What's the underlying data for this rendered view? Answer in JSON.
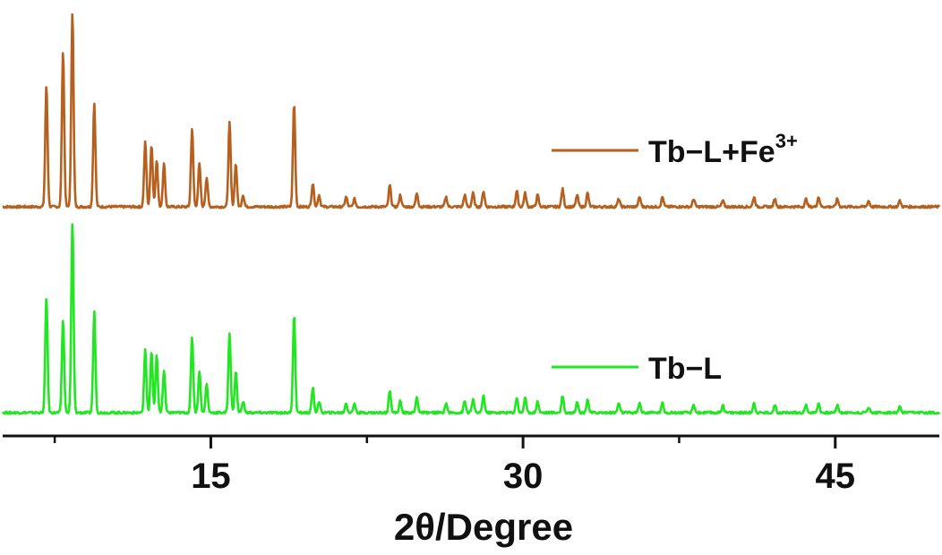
{
  "chart_data": {
    "type": "line",
    "xlabel": "2θ/Degree",
    "ylabel": "",
    "title": "",
    "xlim": [
      5,
      50
    ],
    "xticks": [
      15,
      30,
      45
    ],
    "minor_xticks": [
      7.5,
      22.5,
      37.5
    ],
    "grid": false,
    "legend_placement": "right, beside each trace",
    "series": [
      {
        "name_main": "Tb−L+Fe",
        "name_sup": "3+",
        "color": "#b5601e",
        "peaks": [
          {
            "x": 7.1,
            "y": 0.62
          },
          {
            "x": 7.9,
            "y": 0.8
          },
          {
            "x": 8.35,
            "y": 1.0
          },
          {
            "x": 9.4,
            "y": 0.53
          },
          {
            "x": 11.85,
            "y": 0.33
          },
          {
            "x": 12.15,
            "y": 0.32
          },
          {
            "x": 12.4,
            "y": 0.24
          },
          {
            "x": 12.75,
            "y": 0.22
          },
          {
            "x": 14.1,
            "y": 0.4
          },
          {
            "x": 14.45,
            "y": 0.22
          },
          {
            "x": 14.8,
            "y": 0.15
          },
          {
            "x": 15.9,
            "y": 0.43
          },
          {
            "x": 16.2,
            "y": 0.22
          },
          {
            "x": 16.55,
            "y": 0.06
          },
          {
            "x": 19.0,
            "y": 0.53
          },
          {
            "x": 19.9,
            "y": 0.12
          },
          {
            "x": 20.2,
            "y": 0.06
          },
          {
            "x": 21.5,
            "y": 0.05
          },
          {
            "x": 21.9,
            "y": 0.04
          },
          {
            "x": 23.6,
            "y": 0.11
          },
          {
            "x": 24.1,
            "y": 0.06
          },
          {
            "x": 24.9,
            "y": 0.07
          },
          {
            "x": 26.3,
            "y": 0.05
          },
          {
            "x": 27.2,
            "y": 0.06
          },
          {
            "x": 27.6,
            "y": 0.07
          },
          {
            "x": 28.1,
            "y": 0.08
          },
          {
            "x": 29.7,
            "y": 0.08
          },
          {
            "x": 30.1,
            "y": 0.07
          },
          {
            "x": 30.7,
            "y": 0.06
          },
          {
            "x": 31.9,
            "y": 0.09
          },
          {
            "x": 32.6,
            "y": 0.06
          },
          {
            "x": 33.1,
            "y": 0.07
          },
          {
            "x": 34.6,
            "y": 0.04
          },
          {
            "x": 35.6,
            "y": 0.05
          },
          {
            "x": 36.7,
            "y": 0.05
          },
          {
            "x": 38.2,
            "y": 0.04
          },
          {
            "x": 39.6,
            "y": 0.03
          },
          {
            "x": 41.1,
            "y": 0.05
          },
          {
            "x": 42.1,
            "y": 0.04
          },
          {
            "x": 43.6,
            "y": 0.04
          },
          {
            "x": 44.2,
            "y": 0.05
          },
          {
            "x": 45.1,
            "y": 0.04
          },
          {
            "x": 46.6,
            "y": 0.03
          },
          {
            "x": 48.1,
            "y": 0.03
          }
        ]
      },
      {
        "name_main": "Tb−L",
        "name_sup": "",
        "color": "#22e622",
        "peaks": [
          {
            "x": 7.1,
            "y": 0.61
          },
          {
            "x": 7.9,
            "y": 0.49
          },
          {
            "x": 8.35,
            "y": 1.0
          },
          {
            "x": 9.4,
            "y": 0.53
          },
          {
            "x": 11.85,
            "y": 0.33
          },
          {
            "x": 12.15,
            "y": 0.32
          },
          {
            "x": 12.4,
            "y": 0.3
          },
          {
            "x": 12.75,
            "y": 0.22
          },
          {
            "x": 14.1,
            "y": 0.4
          },
          {
            "x": 14.45,
            "y": 0.22
          },
          {
            "x": 14.8,
            "y": 0.15
          },
          {
            "x": 15.9,
            "y": 0.42
          },
          {
            "x": 16.2,
            "y": 0.22
          },
          {
            "x": 16.55,
            "y": 0.06
          },
          {
            "x": 19.0,
            "y": 0.52
          },
          {
            "x": 19.9,
            "y": 0.13
          },
          {
            "x": 20.2,
            "y": 0.06
          },
          {
            "x": 21.5,
            "y": 0.05
          },
          {
            "x": 21.9,
            "y": 0.05
          },
          {
            "x": 23.6,
            "y": 0.12
          },
          {
            "x": 24.1,
            "y": 0.06
          },
          {
            "x": 24.9,
            "y": 0.08
          },
          {
            "x": 26.3,
            "y": 0.05
          },
          {
            "x": 27.2,
            "y": 0.06
          },
          {
            "x": 27.6,
            "y": 0.07
          },
          {
            "x": 28.1,
            "y": 0.09
          },
          {
            "x": 29.7,
            "y": 0.08
          },
          {
            "x": 30.1,
            "y": 0.08
          },
          {
            "x": 30.7,
            "y": 0.06
          },
          {
            "x": 31.9,
            "y": 0.09
          },
          {
            "x": 32.6,
            "y": 0.06
          },
          {
            "x": 33.1,
            "y": 0.07
          },
          {
            "x": 34.6,
            "y": 0.05
          },
          {
            "x": 35.6,
            "y": 0.05
          },
          {
            "x": 36.7,
            "y": 0.05
          },
          {
            "x": 38.2,
            "y": 0.04
          },
          {
            "x": 39.6,
            "y": 0.04
          },
          {
            "x": 41.1,
            "y": 0.05
          },
          {
            "x": 42.1,
            "y": 0.04
          },
          {
            "x": 43.6,
            "y": 0.04
          },
          {
            "x": 44.2,
            "y": 0.05
          },
          {
            "x": 45.1,
            "y": 0.04
          },
          {
            "x": 46.6,
            "y": 0.03
          },
          {
            "x": 48.1,
            "y": 0.03
          }
        ]
      }
    ]
  }
}
